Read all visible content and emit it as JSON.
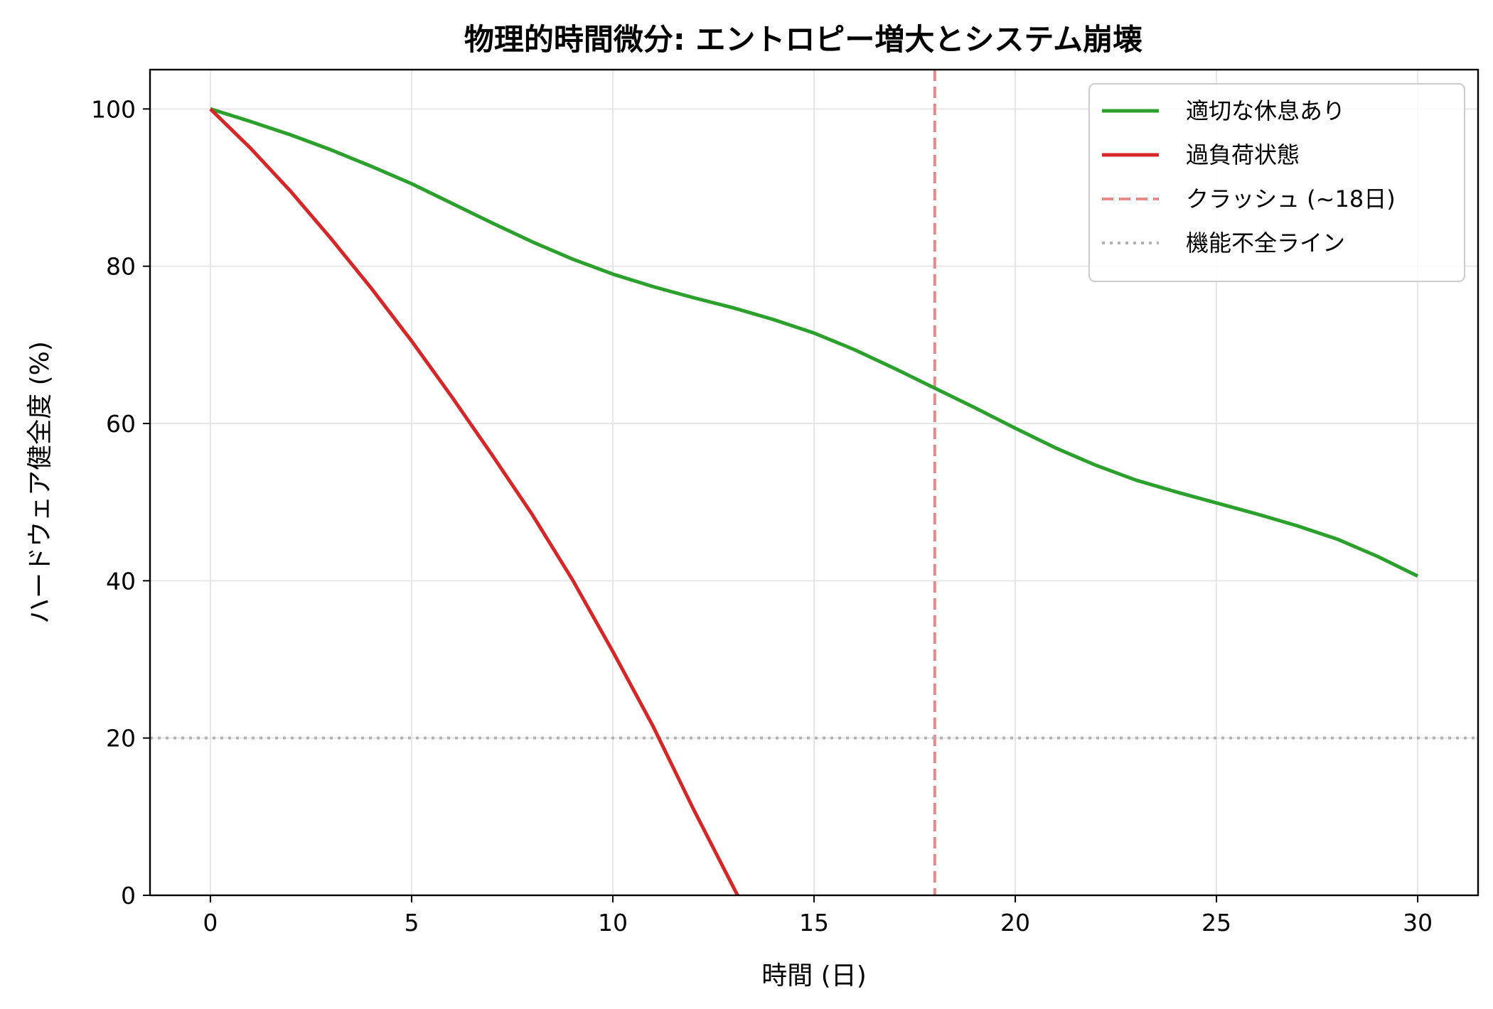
{
  "chart_data": {
    "type": "line",
    "title": "物理的時間微分: エントロピー増大とシステム崩壊",
    "xlabel": "時間 (日)",
    "ylabel": "ハードウェア健全度 (%)",
    "xlim": [
      -1.5,
      31.5
    ],
    "ylim": [
      0,
      105
    ],
    "xticks": [
      0,
      5,
      10,
      15,
      20,
      25,
      30
    ],
    "yticks": [
      0,
      20,
      40,
      60,
      80,
      100
    ],
    "grid": true,
    "legend_position": "top-right",
    "series": [
      {
        "name": "適切な休息あり",
        "color": "#2ca02c",
        "style": "solid",
        "x": [
          0,
          1,
          2,
          3,
          4,
          5,
          6,
          7,
          8,
          9,
          10,
          11,
          12,
          13,
          14,
          15,
          16,
          17,
          18,
          19,
          20,
          21,
          22,
          23,
          24,
          25,
          26,
          27,
          28,
          29,
          30
        ],
        "y": [
          100,
          98.4,
          96.7,
          94.8,
          92.7,
          90.5,
          88,
          85.5,
          83.1,
          80.9,
          79,
          77.4,
          76,
          74.7,
          73.2,
          71.5,
          69.4,
          67,
          64.5,
          62,
          59.4,
          56.9,
          54.7,
          52.8,
          51.3,
          49.9,
          48.5,
          47,
          45.3,
          43.1,
          40.6
        ]
      },
      {
        "name": "過負荷状態",
        "color": "#d62728",
        "style": "solid",
        "x": [
          0,
          1,
          2,
          3,
          4,
          5,
          6,
          7,
          8,
          9,
          10,
          11,
          12,
          13.1
        ],
        "y": [
          100,
          95,
          89.5,
          83.5,
          77.2,
          70.5,
          63.4,
          56,
          48.4,
          40.1,
          31,
          21.5,
          11,
          0
        ]
      }
    ],
    "reference_lines": [
      {
        "name": "クラッシュ (~18日)",
        "orientation": "vertical",
        "value": 18,
        "color": "#e8898a",
        "style": "dashed"
      },
      {
        "name": "機能不全ライン",
        "orientation": "horizontal",
        "value": 20,
        "color": "#b3b3b3",
        "style": "dotted"
      }
    ]
  }
}
